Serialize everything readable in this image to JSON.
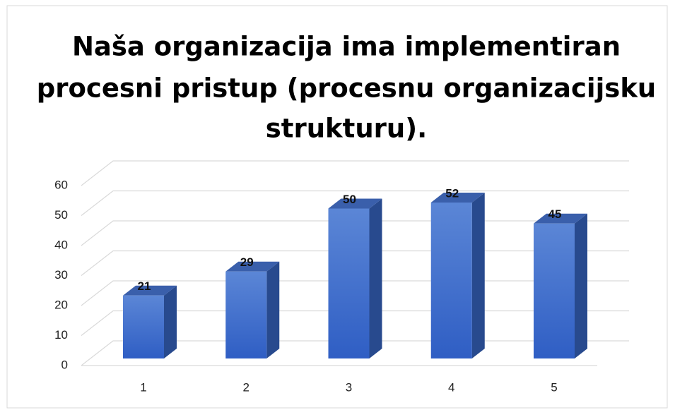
{
  "chart_data": {
    "type": "bar3d",
    "title": [
      "Naša organizacija ima implementiran",
      "procesni pristup (procesnu organizacijsku",
      "strukturu)."
    ],
    "categories": [
      "1",
      "2",
      "3",
      "4",
      "5"
    ],
    "values": [
      21,
      29,
      50,
      52,
      45
    ],
    "color": "#3d6bc9",
    "ylim": [
      0,
      60
    ],
    "yticks": [
      0,
      10,
      20,
      30,
      40,
      50,
      60
    ],
    "grid": true
  }
}
